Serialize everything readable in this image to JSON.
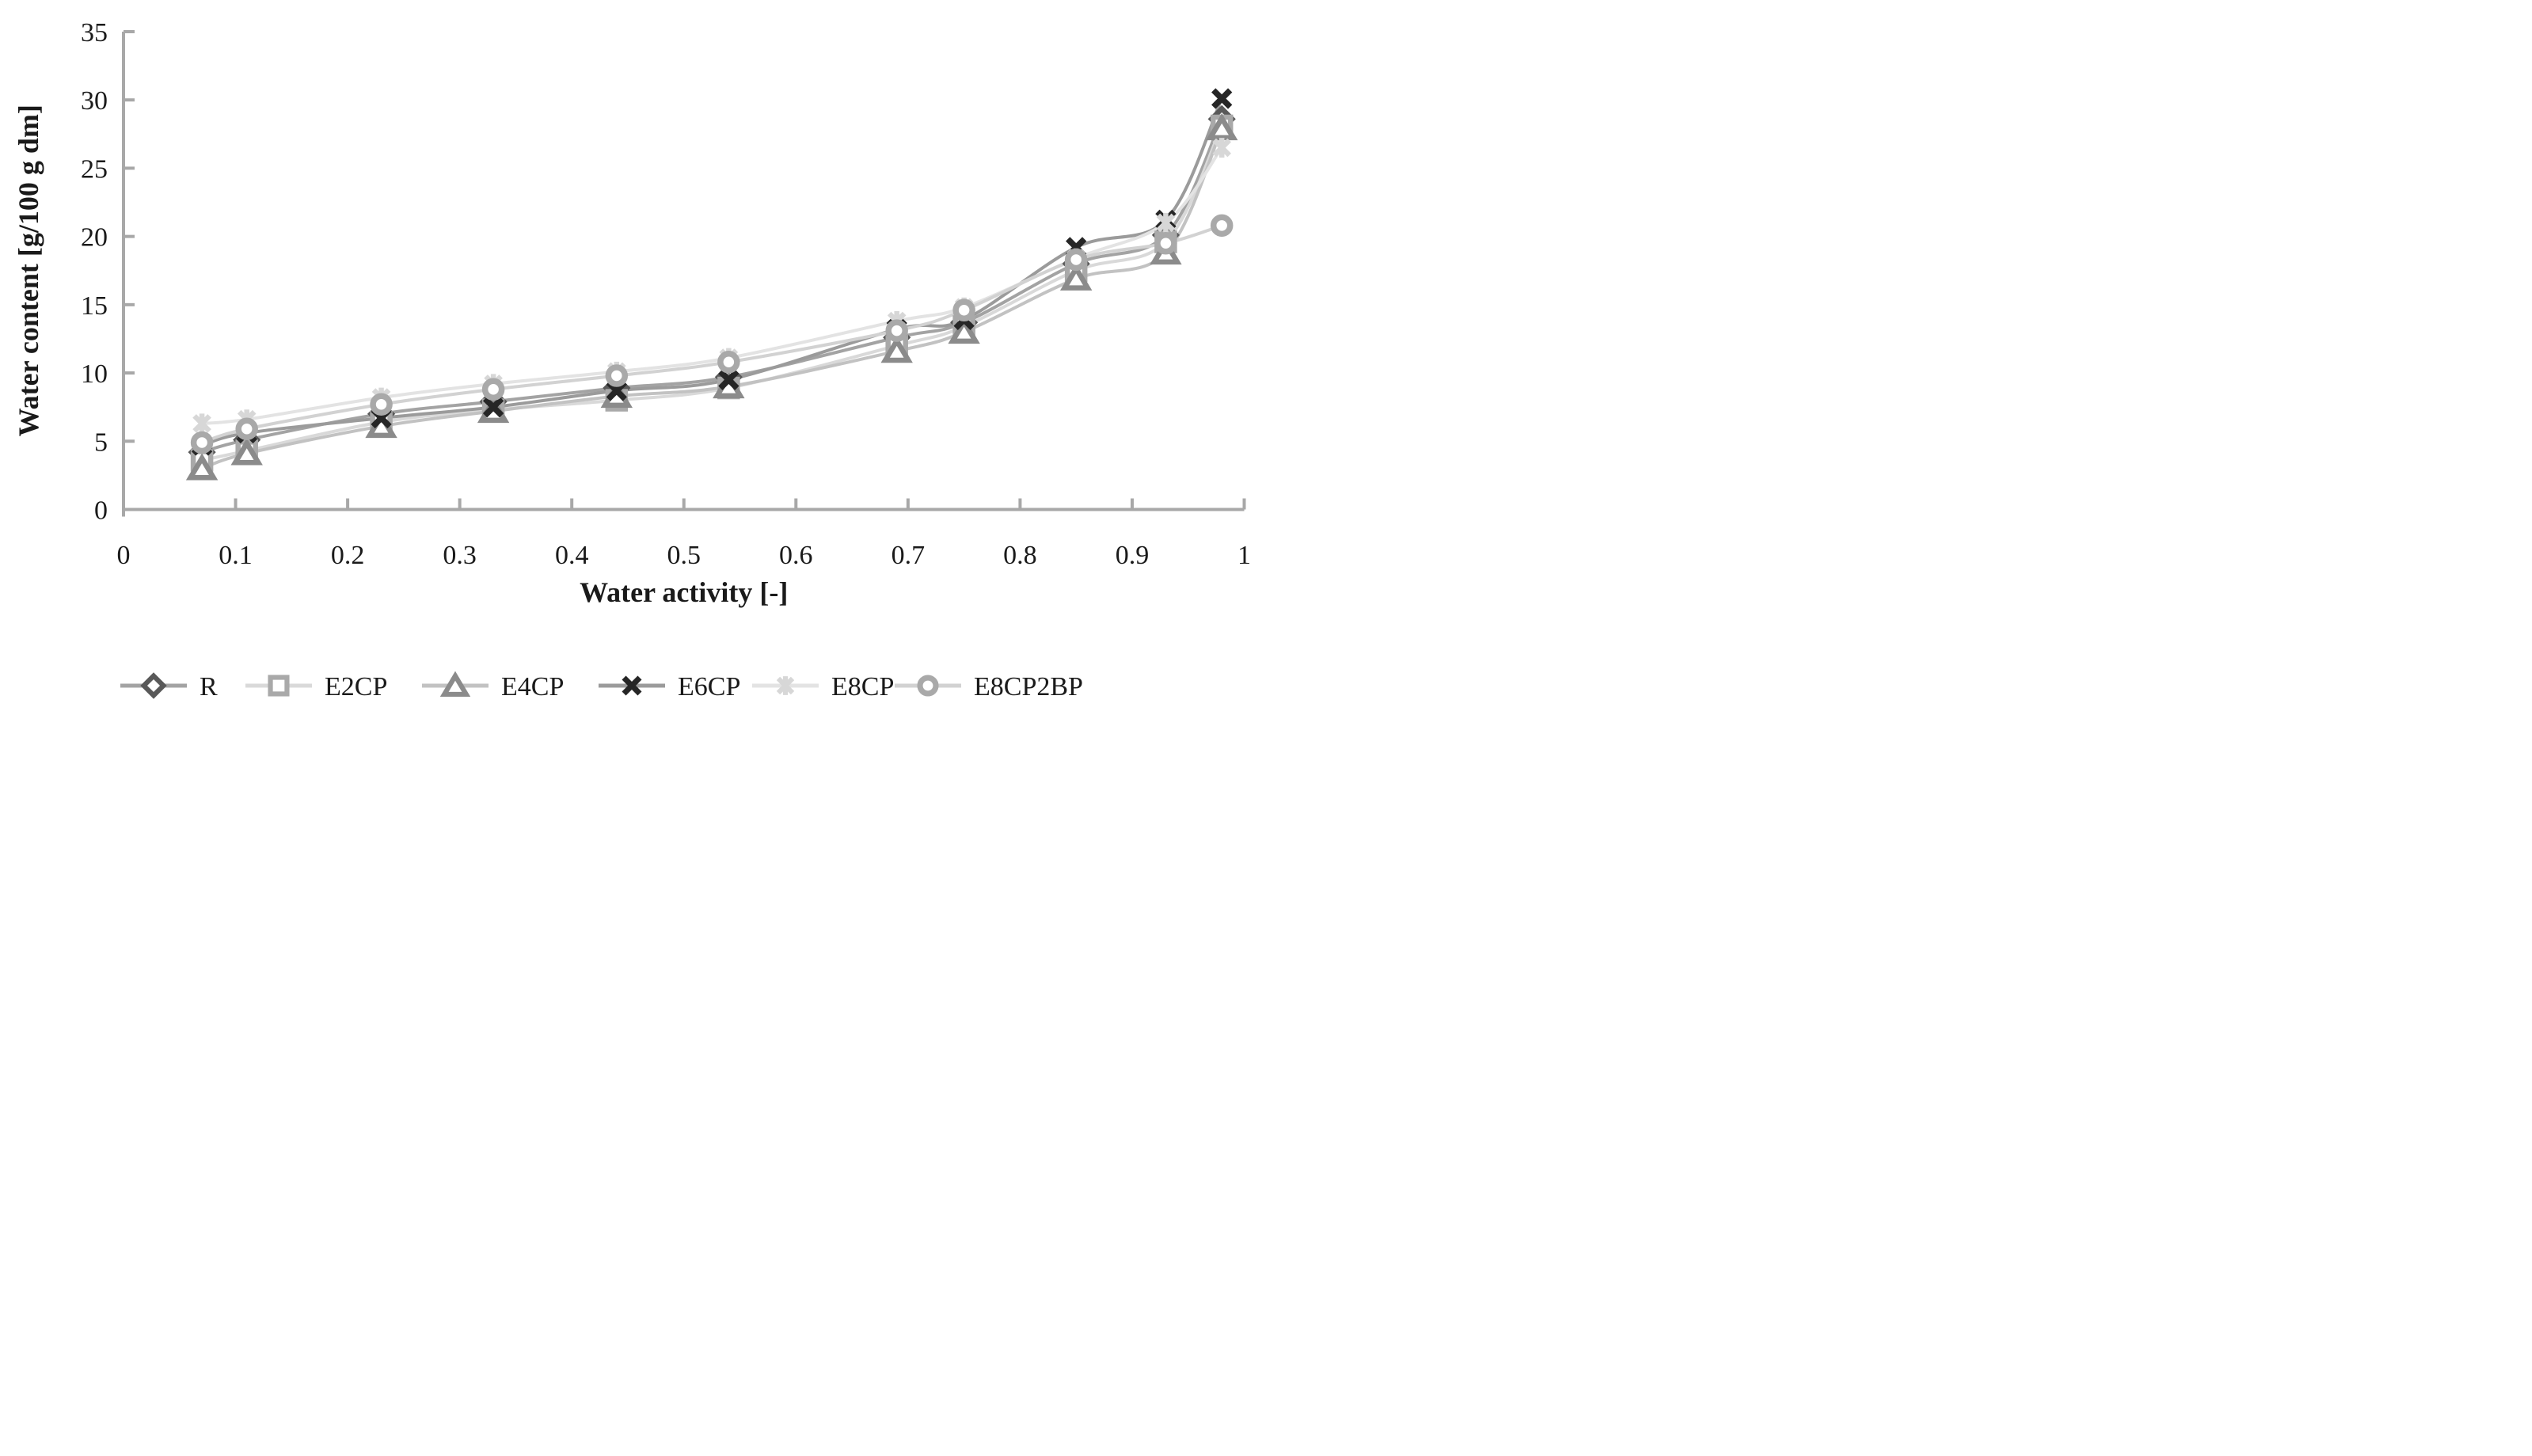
{
  "figure": {
    "background": "#ffffff",
    "axis_color": "#a8a8a8",
    "text_color": "#1a1a1a"
  },
  "chart_data": {
    "type": "line",
    "title": "",
    "xlabel": "Water activity [-]",
    "ylabel": "Water content [g/100 g dm]",
    "xlim": [
      0,
      1
    ],
    "ylim": [
      0,
      35
    ],
    "x_ticks": [
      0,
      0.1,
      0.2,
      0.3,
      0.4,
      0.5,
      0.6,
      0.7,
      0.8,
      0.9,
      1
    ],
    "x_tick_labels": [
      "0",
      "0.1",
      "0.2",
      "0.3",
      "0.4",
      "0.5",
      "0.6",
      "0.7",
      "0.8",
      "0.9",
      "1"
    ],
    "y_ticks": [
      0,
      5,
      10,
      15,
      20,
      25,
      30,
      35
    ],
    "y_tick_labels": [
      "0",
      "5",
      "10",
      "15",
      "20",
      "25",
      "30",
      "35"
    ],
    "grid": false,
    "legend_position": "bottom",
    "x": [
      0.07,
      0.11,
      0.23,
      0.33,
      0.44,
      0.54,
      0.69,
      0.75,
      0.85,
      0.93,
      0.98
    ],
    "series": [
      {
        "name": "R",
        "marker": "diamond",
        "marker_color": "#595959",
        "line_color": "#a3a3a3",
        "values": [
          4.2,
          5.1,
          7.0,
          7.9,
          8.9,
          9.7,
          12.6,
          13.7,
          18.0,
          20.1,
          28.6
        ]
      },
      {
        "name": "E2CP",
        "marker": "square",
        "marker_color": "#a9a9a9",
        "line_color": "#d9d9d9",
        "values": [
          3.6,
          4.3,
          6.4,
          7.3,
          8.0,
          8.9,
          12.0,
          13.4,
          17.5,
          19.6,
          28.1
        ]
      },
      {
        "name": "E4CP",
        "marker": "triangle",
        "marker_color": "#8b8b8b",
        "line_color": "#c2c2c2",
        "values": [
          3.0,
          4.1,
          6.1,
          7.2,
          8.3,
          9.0,
          11.6,
          13.0,
          16.9,
          18.8,
          27.9
        ]
      },
      {
        "name": "E6CP",
        "marker": "x",
        "marker_color": "#262626",
        "line_color": "#9b9b9b",
        "values": [
          4.7,
          5.6,
          6.7,
          7.5,
          8.7,
          9.5,
          13.2,
          13.9,
          19.2,
          21.2,
          30.1
        ]
      },
      {
        "name": "E8CP",
        "marker": "asterisk",
        "marker_color": "#d7d7d7",
        "line_color": "#e3e3e3",
        "values": [
          6.3,
          6.6,
          8.2,
          9.2,
          10.1,
          11.1,
          13.8,
          14.8,
          18.4,
          21.0,
          26.5
        ]
      },
      {
        "name": "E8CP2BP",
        "marker": "circle",
        "marker_color": "#a9a9a9",
        "line_color": "#d2d2d2",
        "values": [
          4.9,
          5.9,
          7.7,
          8.8,
          9.8,
          10.8,
          13.1,
          14.6,
          18.3,
          19.5,
          20.8
        ]
      }
    ]
  }
}
